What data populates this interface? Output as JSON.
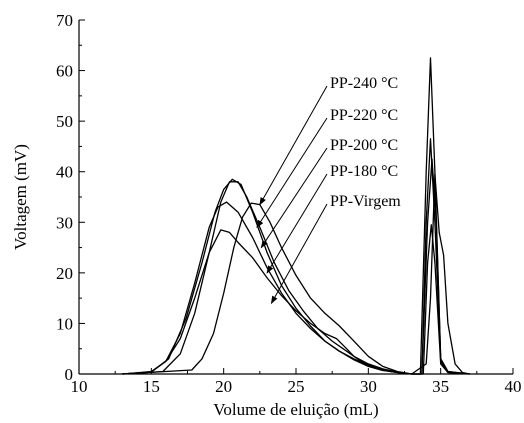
{
  "chart_data": {
    "type": "line",
    "title": "",
    "xlabel": "Volume de eluição (mL)",
    "ylabel": "Voltagem (mV)",
    "xlim": [
      10,
      40
    ],
    "ylim": [
      0,
      70
    ],
    "x_ticks": [
      "10",
      "15",
      "20",
      "25",
      "30",
      "35",
      "40"
    ],
    "y_ticks": [
      "0",
      "10",
      "20",
      "30",
      "40",
      "50",
      "60",
      "70"
    ],
    "grid": false,
    "legend": "annotations with arrows",
    "series": [
      {
        "name": "PP-240 °C",
        "points": [
          [
            13,
            0
          ],
          [
            15,
            0.4
          ],
          [
            16,
            2.5
          ],
          [
            17,
            8
          ],
          [
            18,
            18
          ],
          [
            19,
            29
          ],
          [
            19.6,
            33
          ],
          [
            20.2,
            34
          ],
          [
            21,
            32
          ],
          [
            22,
            27
          ],
          [
            23,
            21
          ],
          [
            24,
            16
          ],
          [
            25,
            12
          ],
          [
            26,
            9
          ],
          [
            27,
            6.5
          ],
          [
            28,
            4.5
          ],
          [
            29,
            2.8
          ],
          [
            30,
            1.5
          ],
          [
            31,
            0.7
          ],
          [
            32,
            0.3
          ],
          [
            33,
            0
          ],
          [
            33.6,
            0
          ],
          [
            34,
            40
          ],
          [
            34.3,
            62.5
          ],
          [
            34.6,
            40
          ],
          [
            35,
            3
          ],
          [
            35.5,
            0.5
          ],
          [
            37,
            0
          ]
        ]
      },
      {
        "name": "PP-220 °C",
        "points": [
          [
            13,
            0
          ],
          [
            15,
            0.4
          ],
          [
            16.2,
            3
          ],
          [
            17.4,
            11
          ],
          [
            18.5,
            22
          ],
          [
            19.4,
            32
          ],
          [
            20,
            36.5
          ],
          [
            20.6,
            38.5
          ],
          [
            21.2,
            37.5
          ],
          [
            22,
            32
          ],
          [
            23,
            24
          ],
          [
            24,
            17.5
          ],
          [
            25,
            13
          ],
          [
            26,
            9.5
          ],
          [
            27,
            6.5
          ],
          [
            28,
            4.5
          ],
          [
            29,
            3
          ],
          [
            30,
            1.7
          ],
          [
            31,
            0.8
          ],
          [
            32,
            0.3
          ],
          [
            33,
            0
          ],
          [
            33.7,
            0
          ],
          [
            34,
            30
          ],
          [
            34.3,
            46.5
          ],
          [
            34.6,
            30
          ],
          [
            35,
            2.5
          ],
          [
            35.5,
            0.3
          ],
          [
            37,
            0
          ]
        ]
      },
      {
        "name": "PP-200 °C",
        "points": [
          [
            13,
            0
          ],
          [
            15,
            0.5
          ],
          [
            16,
            2.5
          ],
          [
            17,
            7
          ],
          [
            18,
            15
          ],
          [
            19,
            24
          ],
          [
            19.8,
            28.5
          ],
          [
            20.4,
            28
          ],
          [
            21,
            26
          ],
          [
            22,
            23
          ],
          [
            23,
            19
          ],
          [
            24,
            15.5
          ],
          [
            25,
            12.5
          ],
          [
            26,
            10
          ],
          [
            27,
            8
          ],
          [
            27.8,
            7
          ],
          [
            28.5,
            5
          ],
          [
            29,
            3.5
          ],
          [
            30,
            2
          ],
          [
            31,
            1
          ],
          [
            32,
            0.4
          ],
          [
            33,
            0
          ],
          [
            33.7,
            0
          ],
          [
            34.1,
            30
          ],
          [
            34.4,
            42.5
          ],
          [
            34.7,
            30
          ],
          [
            35,
            3
          ],
          [
            35.5,
            0.5
          ],
          [
            37,
            0
          ]
        ]
      },
      {
        "name": "PP-180 °C",
        "points": [
          [
            13,
            0
          ],
          [
            15.8,
            0.5
          ],
          [
            17,
            4
          ],
          [
            18,
            12
          ],
          [
            19,
            24
          ],
          [
            19.8,
            34
          ],
          [
            20.4,
            38
          ],
          [
            21,
            38
          ],
          [
            21.6,
            35
          ],
          [
            22.5,
            29
          ],
          [
            23.5,
            22
          ],
          [
            24.5,
            16.5
          ],
          [
            25.5,
            12.5
          ],
          [
            26.5,
            9
          ],
          [
            27.5,
            6.5
          ],
          [
            28.5,
            4.5
          ],
          [
            29.5,
            2.5
          ],
          [
            30.5,
            1.2
          ],
          [
            31.5,
            0.5
          ],
          [
            33,
            0
          ],
          [
            33.8,
            0
          ],
          [
            34.1,
            22
          ],
          [
            34.35,
            29.5
          ],
          [
            34.6,
            22
          ],
          [
            35,
            2
          ],
          [
            35.5,
            0.3
          ],
          [
            37,
            0
          ]
        ]
      },
      {
        "name": "PP-Virgem",
        "points": [
          [
            13,
            0
          ],
          [
            17.8,
            0.8
          ],
          [
            18.5,
            3
          ],
          [
            19.3,
            8
          ],
          [
            20,
            16
          ],
          [
            20.7,
            25
          ],
          [
            21.3,
            31
          ],
          [
            21.9,
            33.8
          ],
          [
            22.5,
            33.5
          ],
          [
            23.2,
            30
          ],
          [
            24,
            25
          ],
          [
            25,
            19.5
          ],
          [
            26,
            15
          ],
          [
            27,
            12
          ],
          [
            28,
            9.5
          ],
          [
            29,
            6.5
          ],
          [
            30,
            3.5
          ],
          [
            31,
            1.5
          ],
          [
            32,
            0.5
          ],
          [
            33,
            0
          ],
          [
            34,
            2
          ],
          [
            34.3,
            15
          ],
          [
            34.6,
            39.5
          ],
          [
            34.9,
            28
          ],
          [
            35.2,
            23.5
          ],
          [
            35.5,
            10
          ],
          [
            36,
            2
          ],
          [
            36.5,
            0.3
          ],
          [
            37,
            0
          ]
        ]
      }
    ],
    "annotations": [
      {
        "text": "PP-240 °C",
        "arrow_to": [
          22.5,
          33.5
        ]
      },
      {
        "text": "PP-220 °C",
        "arrow_to": [
          22.3,
          29
        ]
      },
      {
        "text": "PP-200 °C",
        "arrow_to": [
          22.6,
          25
        ]
      },
      {
        "text": "PP-180 °C",
        "arrow_to": [
          23,
          20
        ]
      },
      {
        "text": "PP-Virgem",
        "arrow_to": [
          23.3,
          14
        ]
      }
    ]
  }
}
